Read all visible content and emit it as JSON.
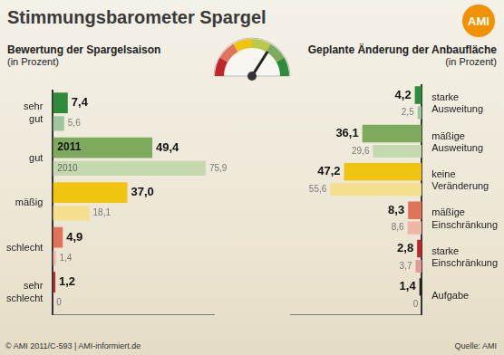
{
  "title": "Stimmungsbarometer Spargel",
  "logo": "AMI",
  "footer": "© AMI 2011/C-593 | AMI-informiert.de",
  "source": "Quelle: AMI",
  "chart_data": [
    {
      "type": "bar",
      "orientation": "horizontal",
      "title": "Bewertung der Spargelsaison",
      "subtitle": "(in Prozent)",
      "categories": [
        "sehr gut",
        "gut",
        "mäßig",
        "schlecht",
        "sehr schlecht"
      ],
      "series": [
        {
          "name": "2011",
          "colors": [
            "#2e8b3a",
            "#7eaa5e",
            "#f1c40f",
            "#e0735a",
            "#c0272d"
          ],
          "values": [
            7.4,
            49.4,
            37.0,
            4.9,
            1.2
          ],
          "value_labels": [
            "7,4",
            "49,4",
            "37,0",
            "4,9",
            "1,2"
          ]
        },
        {
          "name": "2010",
          "colors": [
            "#9cc79a",
            "#c4d9ae",
            "#f6df8c",
            "#f0b6a5",
            "#e39a96"
          ],
          "values": [
            5.6,
            75.9,
            18.1,
            1.4,
            0
          ],
          "value_labels": [
            "5,6",
            "75,9",
            "18,1",
            "1,4",
            "0"
          ]
        }
      ],
      "xlim": [
        0,
        80
      ],
      "data_labels": true,
      "tick_labels": "y",
      "grid": false
    },
    {
      "type": "bar",
      "orientation": "horizontal",
      "title": "Geplante Änderung der Anbaufläche",
      "subtitle": "(in Prozent)",
      "categories": [
        "starke Ausweitung",
        "mäßige Ausweitung",
        "keine Veränderung",
        "mäßige Einschränkung",
        "starke Einschränkung",
        "Aufgabe"
      ],
      "series": [
        {
          "colors": [
            "#2e8b3a",
            "#7eaa5e",
            "#f1c40f",
            "#e0735a",
            "#c0272d",
            "#1e1e1e"
          ],
          "values": [
            4.2,
            36.1,
            47.2,
            8.3,
            2.8,
            1.4
          ],
          "value_labels": [
            "4,2",
            "36,1",
            "47,2",
            "8,3",
            "2,8",
            "1,4"
          ]
        },
        {
          "colors": [
            "#9cc79a",
            "#c4d9ae",
            "#f6df8c",
            "#f0b6a5",
            "#e39a96",
            "#9a9a9a"
          ],
          "values": [
            2.5,
            29.6,
            55.6,
            8.6,
            3.7,
            0
          ],
          "value_labels": [
            "2,5",
            "29,6",
            "55,6",
            "8,6",
            "3,7",
            "0"
          ]
        }
      ],
      "xlim": [
        0,
        80
      ],
      "data_labels": true,
      "tick_labels": "y",
      "grid": false
    }
  ]
}
